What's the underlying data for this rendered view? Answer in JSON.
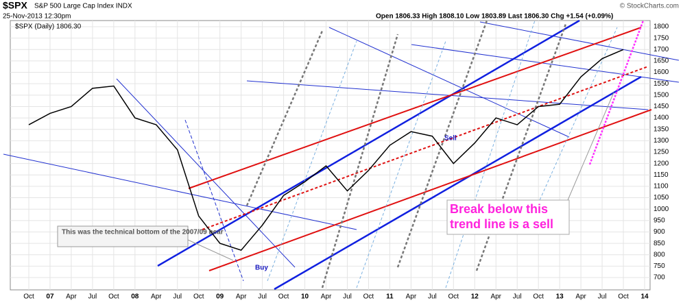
{
  "header": {
    "symbol": "$SPX",
    "name": "S&P 500 Large Cap Index INDX",
    "date": "25-Nov-2013 12:30pm",
    "quote": "Open 1806.33  High 1808.10  Low 1803.89  Last 1806.30  Chg +1.54 (+0.09%)",
    "credit": "© StockCharts.com"
  },
  "chart_data": {
    "type": "line",
    "categories": [
      "Oct",
      "07",
      "Apr",
      "Jul",
      "Oct",
      "08",
      "Apr",
      "Jul",
      "Oct",
      "09",
      "Apr",
      "Jul",
      "Oct",
      "10",
      "Apr",
      "Jul",
      "Oct",
      "11",
      "Apr",
      "Jul",
      "Oct",
      "12",
      "Apr",
      "Jul",
      "Oct",
      "13",
      "Apr",
      "Jul",
      "Oct",
      "14"
    ],
    "series": [
      {
        "name": "$SPX (Daily) 1806.30",
        "color": "#000000",
        "values": [
          1370,
          1420,
          1450,
          1530,
          1540,
          1400,
          1370,
          1260,
          970,
          850,
          820,
          930,
          1060,
          1120,
          1190,
          1080,
          1170,
          1280,
          1340,
          1320,
          1200,
          1290,
          1400,
          1370,
          1450,
          1460,
          1580,
          1660,
          1700,
          null
        ]
      }
    ],
    "ylim": [
      646,
      1827
    ],
    "yticks": [
      700,
      750,
      800,
      850,
      900,
      950,
      1000,
      1050,
      1100,
      1150,
      1200,
      1250,
      1300,
      1350,
      1400,
      1450,
      1500,
      1550,
      1600,
      1650,
      1700,
      1750,
      1800
    ],
    "annotations": [
      "This was the technical bottom of the 2007/09 bear",
      "Buy",
      "Sell",
      "Break below this trend line is a sell"
    ]
  }
}
